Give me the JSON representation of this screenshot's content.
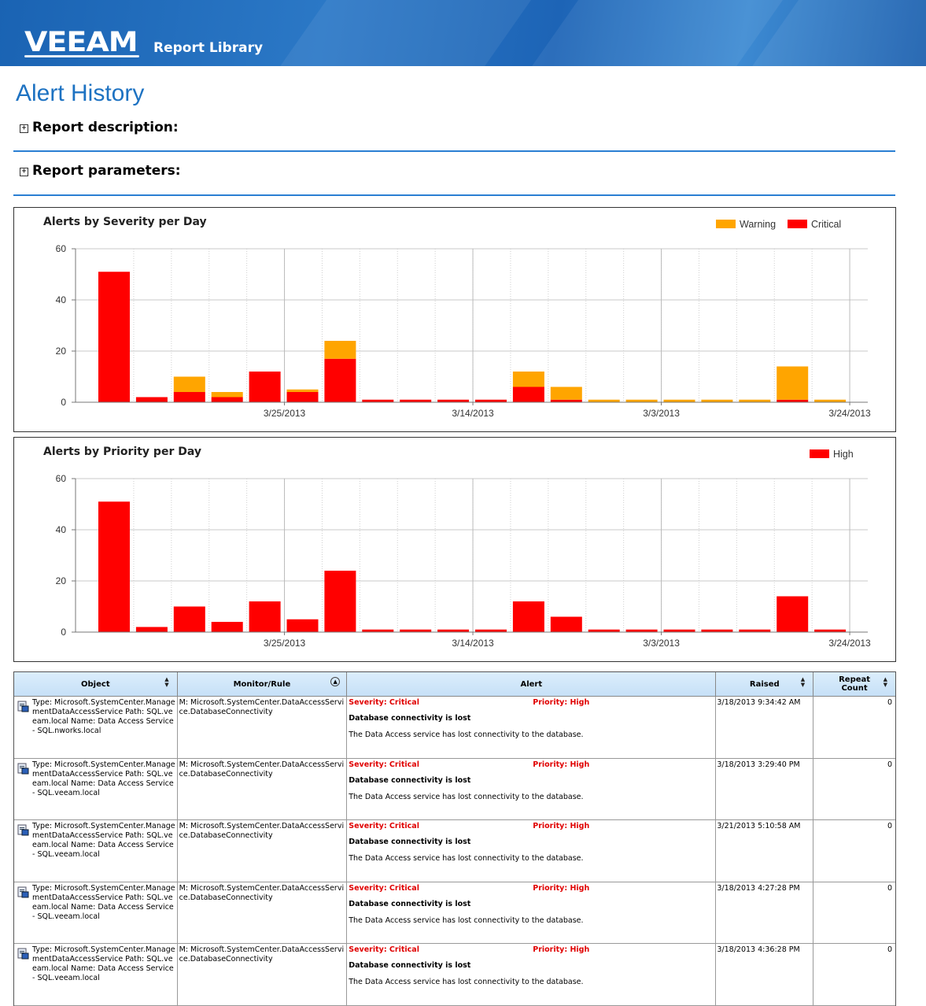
{
  "header": {
    "logo_text": "VEEAM",
    "library_label": "Report Library"
  },
  "page_title": "Alert History",
  "sections": [
    {
      "expand_glyph": "+",
      "label": "Report description:"
    },
    {
      "expand_glyph": "+",
      "label": "Report parameters:"
    }
  ],
  "colors": {
    "critical": "#ff0000",
    "warning": "#ffa500",
    "high": "#ff0000",
    "accent": "#1d72c2"
  },
  "chart_data": [
    {
      "type": "bar",
      "stacked": true,
      "title": "Alerts by Severity per Day",
      "legend_position": "top-right",
      "grid": true,
      "x_tick_labels": [
        "3/25/2013",
        "3/14/2013",
        "3/3/2013",
        "3/24/2013"
      ],
      "ylim": [
        0,
        60
      ],
      "yticks": [
        0,
        20,
        40,
        60
      ],
      "series": [
        {
          "name": "Critical",
          "color": "#ff0000",
          "values": [
            51,
            2,
            4,
            2,
            12,
            4,
            17,
            1,
            1,
            1,
            1,
            6,
            1,
            0,
            0,
            0,
            0,
            0,
            1,
            0
          ]
        },
        {
          "name": "Warning",
          "color": "#ffa500",
          "values": [
            0,
            0,
            6,
            2,
            0,
            1,
            7,
            0,
            0,
            0,
            0,
            6,
            5,
            1,
            1,
            1,
            1,
            1,
            13,
            1
          ]
        }
      ]
    },
    {
      "type": "bar",
      "title": "Alerts by Priority per Day",
      "legend_position": "top-right",
      "grid": true,
      "x_tick_labels": [
        "3/25/2013",
        "3/14/2013",
        "3/3/2013",
        "3/24/2013"
      ],
      "ylim": [
        0,
        60
      ],
      "yticks": [
        0,
        20,
        40,
        60
      ],
      "series": [
        {
          "name": "High",
          "color": "#ff0000",
          "values": [
            51,
            2,
            10,
            4,
            12,
            5,
            24,
            1,
            1,
            1,
            1,
            12,
            6,
            1,
            1,
            1,
            1,
            1,
            14,
            1
          ]
        }
      ]
    }
  ],
  "table": {
    "columns": [
      {
        "label": "Object",
        "sort": "updown"
      },
      {
        "label": "Monitor/Rule",
        "sort": "circle"
      },
      {
        "label": "Alert",
        "sort": ""
      },
      {
        "label": "Raised",
        "sort": "updown"
      },
      {
        "label": "Repeat Count",
        "sort": "updown"
      }
    ],
    "rows": [
      {
        "object": "Type: Microsoft.SystemCenter.ManagementDataAccessService Path: SQL.veeam.local Name: Data Access Service - SQL.nworks.local",
        "monitor": "M: Microsoft.SystemCenter.DataAccessService.DatabaseConnectivity",
        "severity": "Severity: Critical",
        "priority": "Priority: High",
        "alert_name": "Database connectivity is lost",
        "alert_desc": "The Data Access service has lost connectivity to the database.",
        "raised": "3/18/2013 9:34:42 AM",
        "count": "0"
      },
      {
        "object": "Type: Microsoft.SystemCenter.ManagementDataAccessService Path: SQL.veeam.local Name: Data Access Service - SQL.veeam.local",
        "monitor": "M: Microsoft.SystemCenter.DataAccessService.DatabaseConnectivity",
        "severity": "Severity: Critical",
        "priority": "Priority: High",
        "alert_name": "Database connectivity is lost",
        "alert_desc": "The Data Access service has lost connectivity to the database.",
        "raised": "3/18/2013 3:29:40 PM",
        "count": "0"
      },
      {
        "object": "Type: Microsoft.SystemCenter.ManagementDataAccessService Path: SQL.veeam.local Name: Data Access Service - SQL.veeam.local",
        "monitor": "M: Microsoft.SystemCenter.DataAccessService.DatabaseConnectivity",
        "severity": "Severity: Critical",
        "priority": "Priority: High",
        "alert_name": "Database connectivity is lost",
        "alert_desc": "The Data Access service has lost connectivity to the database.",
        "raised": "3/21/2013 5:10:58 AM",
        "count": "0"
      },
      {
        "object": "Type: Microsoft.SystemCenter.ManagementDataAccessService Path: SQL.veeam.local Name: Data Access Service - SQL.veeam.local",
        "monitor": "M: Microsoft.SystemCenter.DataAccessService.DatabaseConnectivity",
        "severity": "Severity: Critical",
        "priority": "Priority: High",
        "alert_name": "Database connectivity is lost",
        "alert_desc": "The Data Access service has lost connectivity to the database.",
        "raised": "3/18/2013 4:27:28 PM",
        "count": "0"
      },
      {
        "object": "Type: Microsoft.SystemCenter.ManagementDataAccessService Path: SQL.veeam.local Name: Data Access Service - SQL.veeam.local",
        "monitor": "M: Microsoft.SystemCenter.DataAccessService.DatabaseConnectivity",
        "severity": "Severity: Critical",
        "priority": "Priority: High",
        "alert_name": "Database connectivity is lost",
        "alert_desc": "The Data Access service has lost connectivity to the database.",
        "raised": "3/18/2013 4:36:28 PM",
        "count": "0"
      }
    ]
  }
}
